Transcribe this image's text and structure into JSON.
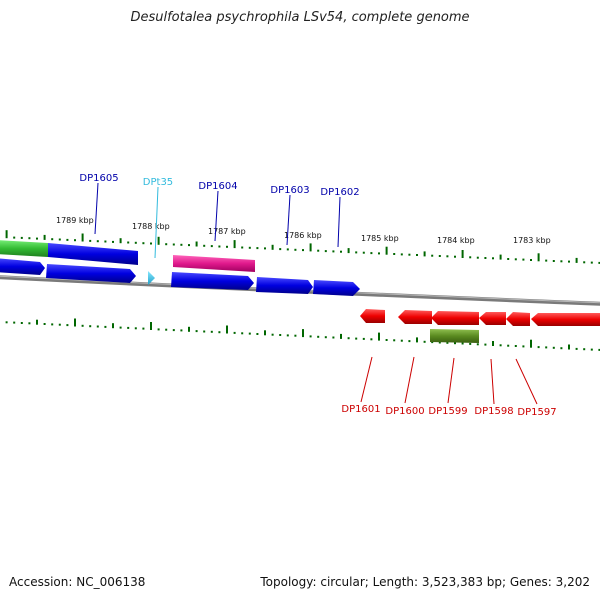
{
  "header": {
    "title": "Desulfotalea psychrophila LSv54, complete genome"
  },
  "footer": {
    "accession": "Accession: NC_006138",
    "summary": "Topology: circular; Length: 3,523,383 bp; Genes: 3,202"
  },
  "colors": {
    "forward_cds": "#0000ee",
    "reverse_cds": "#ee0000",
    "trna": "#33ccee",
    "pink_feature": "#e0198c",
    "green_feature": "#33bb33",
    "olive_feature": "#5a8a20",
    "tick": "#006600",
    "backbone": "#7a7a7a"
  },
  "scale_labels": [
    "1789 kbp",
    "1788 kbp",
    "1787 kbp",
    "1786 kbp",
    "1785 kbp",
    "1784 kbp",
    "1783 kbp"
  ],
  "top_genes": [
    {
      "name": "DP1605",
      "color": "#0000aa"
    },
    {
      "name": "DPt35",
      "color": "#33bbdd"
    },
    {
      "name": "DP1604",
      "color": "#0000aa"
    },
    {
      "name": "DP1603",
      "color": "#0000aa"
    },
    {
      "name": "DP1602",
      "color": "#0000aa"
    }
  ],
  "bottom_genes": [
    {
      "name": "DP1601",
      "color": "#cc0000"
    },
    {
      "name": "DP1600",
      "color": "#cc0000"
    },
    {
      "name": "DP1599",
      "color": "#cc0000"
    },
    {
      "name": "DP1598",
      "color": "#cc0000"
    },
    {
      "name": "DP1597",
      "color": "#cc0000"
    }
  ]
}
